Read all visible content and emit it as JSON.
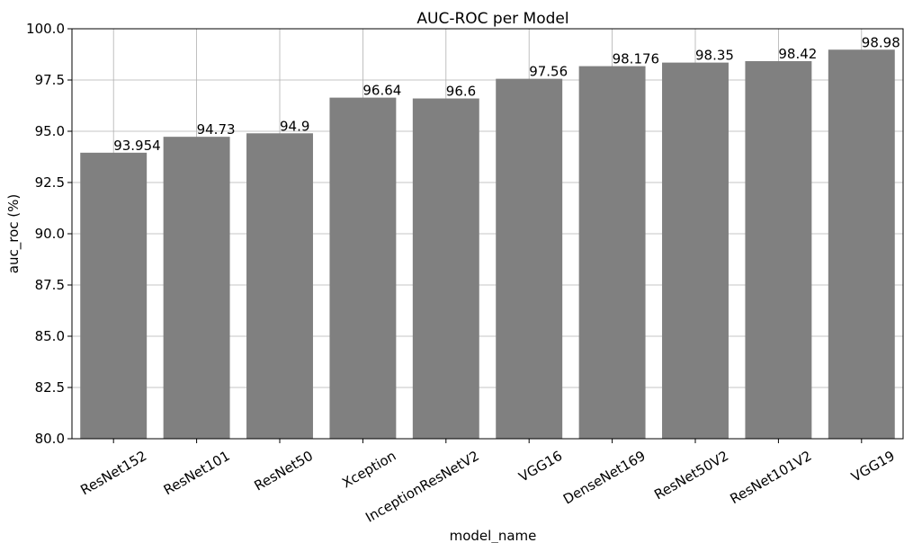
{
  "chart_data": {
    "type": "bar",
    "title": "AUC-ROC per Model",
    "xlabel": "model_name",
    "ylabel": "auc_roc (%)",
    "ylim": [
      80.0,
      100.0
    ],
    "yticks": [
      "80.0",
      "82.5",
      "85.0",
      "87.5",
      "90.0",
      "92.5",
      "95.0",
      "97.5",
      "100.0"
    ],
    "categories": [
      "ResNet152",
      "ResNet101",
      "ResNet50",
      "Xception",
      "InceptionResNetV2",
      "VGG16",
      "DenseNet169",
      "ResNet50V2",
      "ResNet101V2",
      "VGG19"
    ],
    "values": [
      93.954,
      94.73,
      94.9,
      96.64,
      96.6,
      97.56,
      98.176,
      98.35,
      98.42,
      98.98
    ],
    "value_labels": [
      "93.954",
      "94.73",
      "94.9",
      "96.64",
      "96.6",
      "97.56",
      "98.176",
      "98.35",
      "98.42",
      "98.98"
    ],
    "grid": true,
    "bar_color": "#808080"
  }
}
